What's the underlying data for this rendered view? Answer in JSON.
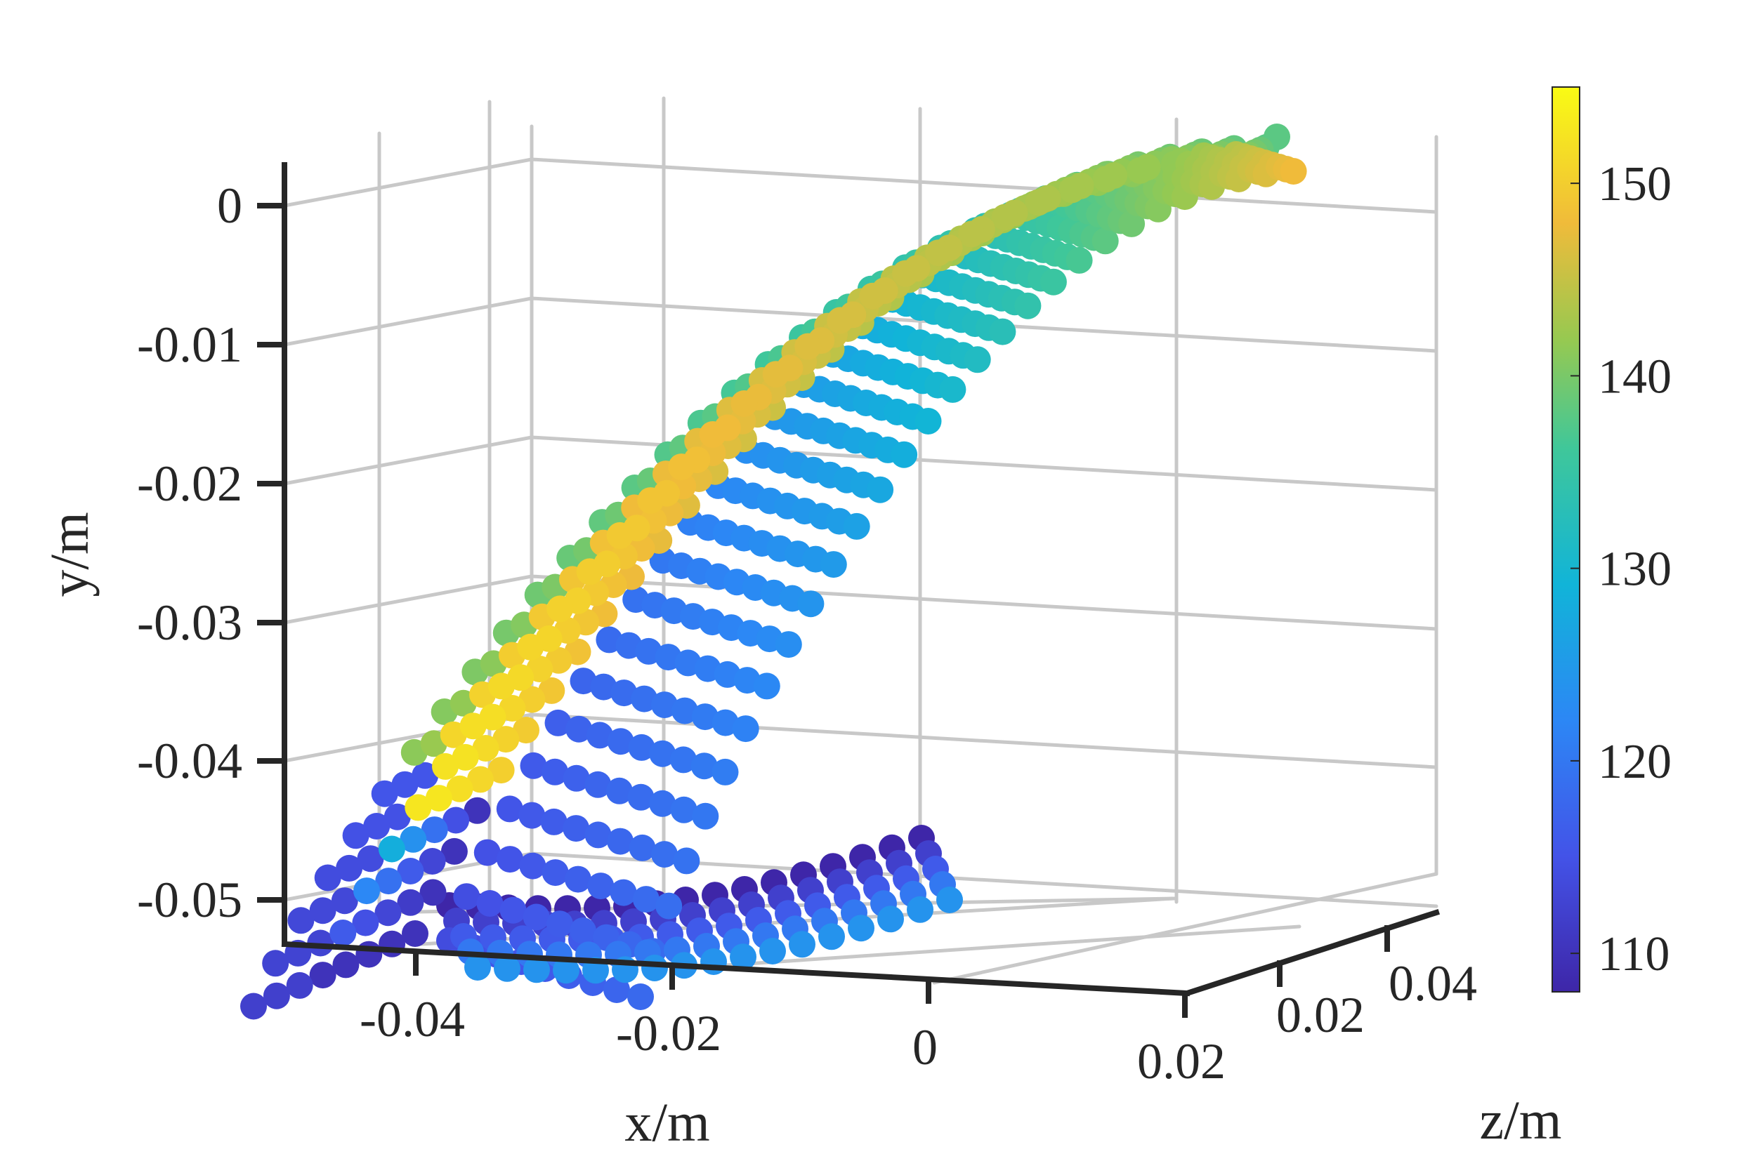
{
  "chart_data": {
    "type": "scatter",
    "projection": "3d",
    "title": "",
    "xlabel": "x/m",
    "ylabel": "y/m",
    "zlabel": "z/m",
    "xlim": [
      -0.05,
      0.02
    ],
    "ylim": [
      -0.053,
      0.002
    ],
    "zlim": [
      0,
      0.045
    ],
    "x_ticks": [
      "-0.04",
      "-0.02",
      "0",
      "0.02"
    ],
    "y_ticks": [
      "0",
      "-0.01",
      "-0.02",
      "-0.03",
      "-0.04",
      "-0.05"
    ],
    "z_ticks": [
      "0.02",
      "0.04"
    ],
    "grid": true,
    "colormap": "parula",
    "colorbar": {
      "range": [
        108,
        155
      ],
      "ticks": [
        "110",
        "120",
        "130",
        "140",
        "150"
      ],
      "position": "right"
    },
    "shape": "curved double-walled sheet of points, bottom near x=-0.03..0.01, y=-0.052, sweeping up to x=0.02, y=-0.002 at z=0.045",
    "colors": {
      "outer_sheet": "#F5D92A",
      "inner_sheet": "#3A6BEF",
      "bottom": "#3D33B8",
      "tip": "#7ACC5E"
    }
  }
}
